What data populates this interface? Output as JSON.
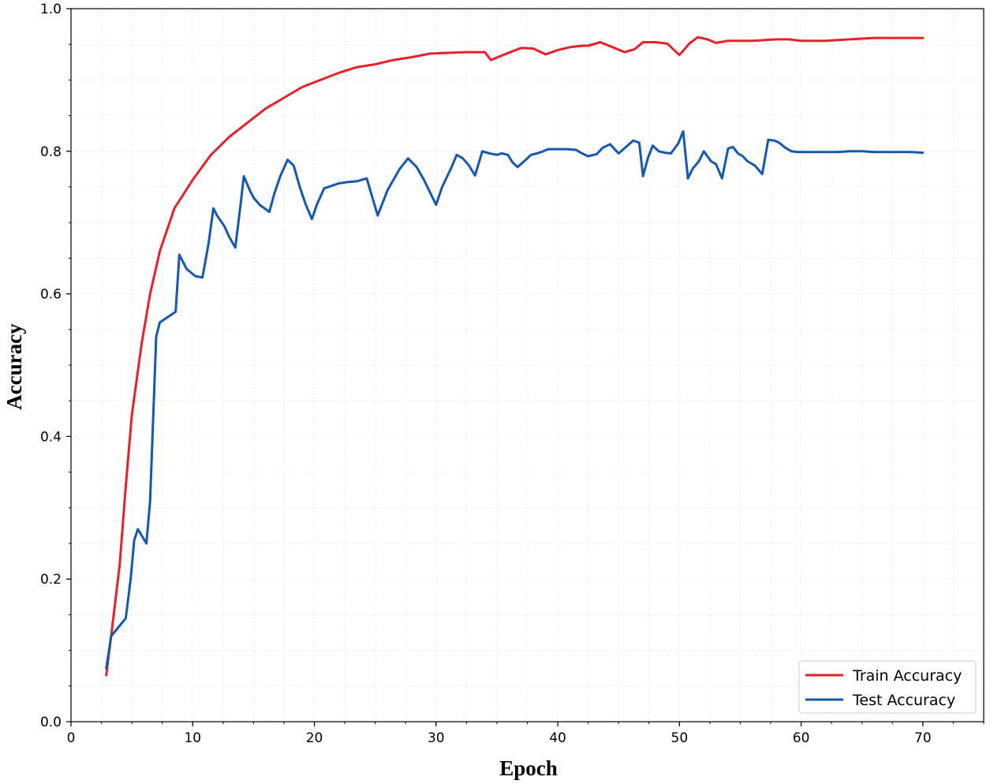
{
  "chart_data": {
    "type": "line",
    "xlabel": "Epoch",
    "ylabel": "Accuracy",
    "xlim": [
      0,
      75
    ],
    "ylim": [
      0.0,
      1.0
    ],
    "xticks": [
      "0",
      "10",
      "20",
      "30",
      "40",
      "50",
      "60",
      "70"
    ],
    "yticks": [
      "0.0",
      "0.2",
      "0.4",
      "0.6",
      "0.8",
      "1.0"
    ],
    "grid": true,
    "legend_position": "lower-right",
    "series": [
      {
        "name": "Train Accuracy",
        "color": "#e8202a",
        "x": [
          2.9,
          3.3,
          4.0,
          4.5,
          5.0,
          5.8,
          6.5,
          7.3,
          8.5,
          10.0,
          11.5,
          13.0,
          14.5,
          16.0,
          17.5,
          19.0,
          20.5,
          22.0,
          23.5,
          25.0,
          26.5,
          28.0,
          29.5,
          31.0,
          32.5,
          34.0,
          34.5,
          35.5,
          37.0,
          38.0,
          39.0,
          40.0,
          41.0,
          42.0,
          42.5,
          43.5,
          44.5,
          45.5,
          46.3,
          47.0,
          48.0,
          49.0,
          50.0,
          50.8,
          51.5,
          52.3,
          53.0,
          54.0,
          55.0,
          56.0,
          57.0,
          58.0,
          59.0,
          60.0,
          61.0,
          62.0,
          63.0,
          64.0,
          65.0,
          66.0,
          67.0,
          68.0,
          69.0,
          70.0
        ],
        "values": [
          0.065,
          0.12,
          0.22,
          0.33,
          0.43,
          0.53,
          0.6,
          0.66,
          0.72,
          0.76,
          0.795,
          0.82,
          0.84,
          0.86,
          0.875,
          0.89,
          0.9,
          0.91,
          0.918,
          0.922,
          0.928,
          0.932,
          0.937,
          0.938,
          0.939,
          0.939,
          0.928,
          0.935,
          0.945,
          0.944,
          0.936,
          0.942,
          0.946,
          0.948,
          0.948,
          0.953,
          0.946,
          0.939,
          0.943,
          0.953,
          0.953,
          0.951,
          0.935,
          0.951,
          0.96,
          0.957,
          0.952,
          0.955,
          0.955,
          0.955,
          0.956,
          0.957,
          0.957,
          0.955,
          0.955,
          0.955,
          0.956,
          0.957,
          0.958,
          0.959,
          0.959,
          0.959,
          0.959,
          0.959
        ]
      },
      {
        "name": "Test Accuracy",
        "color": "#1558b0",
        "x": [
          2.9,
          3.3,
          4.5,
          4.9,
          5.2,
          5.5,
          6.2,
          6.5,
          7.0,
          7.3,
          8.6,
          8.9,
          9.2,
          9.5,
          10.2,
          10.8,
          11.3,
          11.7,
          12.0,
          12.6,
          13.0,
          13.5,
          13.9,
          14.2,
          14.7,
          15.0,
          15.5,
          16.3,
          16.7,
          17.2,
          17.8,
          18.3,
          18.8,
          19.3,
          19.8,
          20.2,
          20.8,
          21.5,
          22.0,
          22.8,
          23.5,
          24.3,
          25.2,
          26.0,
          27.0,
          27.7,
          28.4,
          29.0,
          30.0,
          30.5,
          31.2,
          31.7,
          32.2,
          32.7,
          33.2,
          33.8,
          34.4,
          35.0,
          35.4,
          35.9,
          36.3,
          36.7,
          37.3,
          37.8,
          38.3,
          38.8,
          39.2,
          39.7,
          40.2,
          40.8,
          41.5,
          42.0,
          42.5,
          43.2,
          43.7,
          44.3,
          45.0,
          45.6,
          46.2,
          46.7,
          47.0,
          47.4,
          47.8,
          48.3,
          48.8,
          49.3,
          49.9,
          50.3,
          50.7,
          51.1,
          51.6,
          52.0,
          52.6,
          53.0,
          53.5,
          54.0,
          54.4,
          54.8,
          55.2,
          55.6,
          56.2,
          56.8,
          57.3,
          57.8,
          58.2,
          58.7,
          59.2,
          59.7,
          60.2,
          61.0,
          62.0,
          63.0,
          64.0,
          65.0,
          66.0,
          67.0,
          68.0,
          69.0,
          70.0
        ],
        "values": [
          0.075,
          0.12,
          0.145,
          0.2,
          0.255,
          0.27,
          0.25,
          0.31,
          0.54,
          0.56,
          0.575,
          0.655,
          0.645,
          0.635,
          0.625,
          0.623,
          0.67,
          0.72,
          0.71,
          0.695,
          0.68,
          0.665,
          0.72,
          0.765,
          0.745,
          0.735,
          0.725,
          0.715,
          0.74,
          0.765,
          0.788,
          0.78,
          0.75,
          0.725,
          0.705,
          0.725,
          0.748,
          0.752,
          0.755,
          0.757,
          0.758,
          0.762,
          0.71,
          0.745,
          0.775,
          0.79,
          0.778,
          0.76,
          0.725,
          0.75,
          0.775,
          0.795,
          0.79,
          0.78,
          0.766,
          0.8,
          0.797,
          0.795,
          0.797,
          0.795,
          0.784,
          0.778,
          0.787,
          0.795,
          0.797,
          0.8,
          0.803,
          0.803,
          0.803,
          0.803,
          0.802,
          0.797,
          0.793,
          0.796,
          0.805,
          0.81,
          0.797,
          0.806,
          0.815,
          0.812,
          0.765,
          0.79,
          0.808,
          0.8,
          0.798,
          0.797,
          0.811,
          0.828,
          0.762,
          0.776,
          0.786,
          0.8,
          0.786,
          0.782,
          0.762,
          0.804,
          0.806,
          0.797,
          0.793,
          0.786,
          0.78,
          0.768,
          0.816,
          0.815,
          0.812,
          0.805,
          0.8,
          0.799,
          0.799,
          0.799,
          0.799,
          0.799,
          0.8,
          0.8,
          0.799,
          0.799,
          0.799,
          0.799,
          0.798
        ]
      }
    ]
  }
}
